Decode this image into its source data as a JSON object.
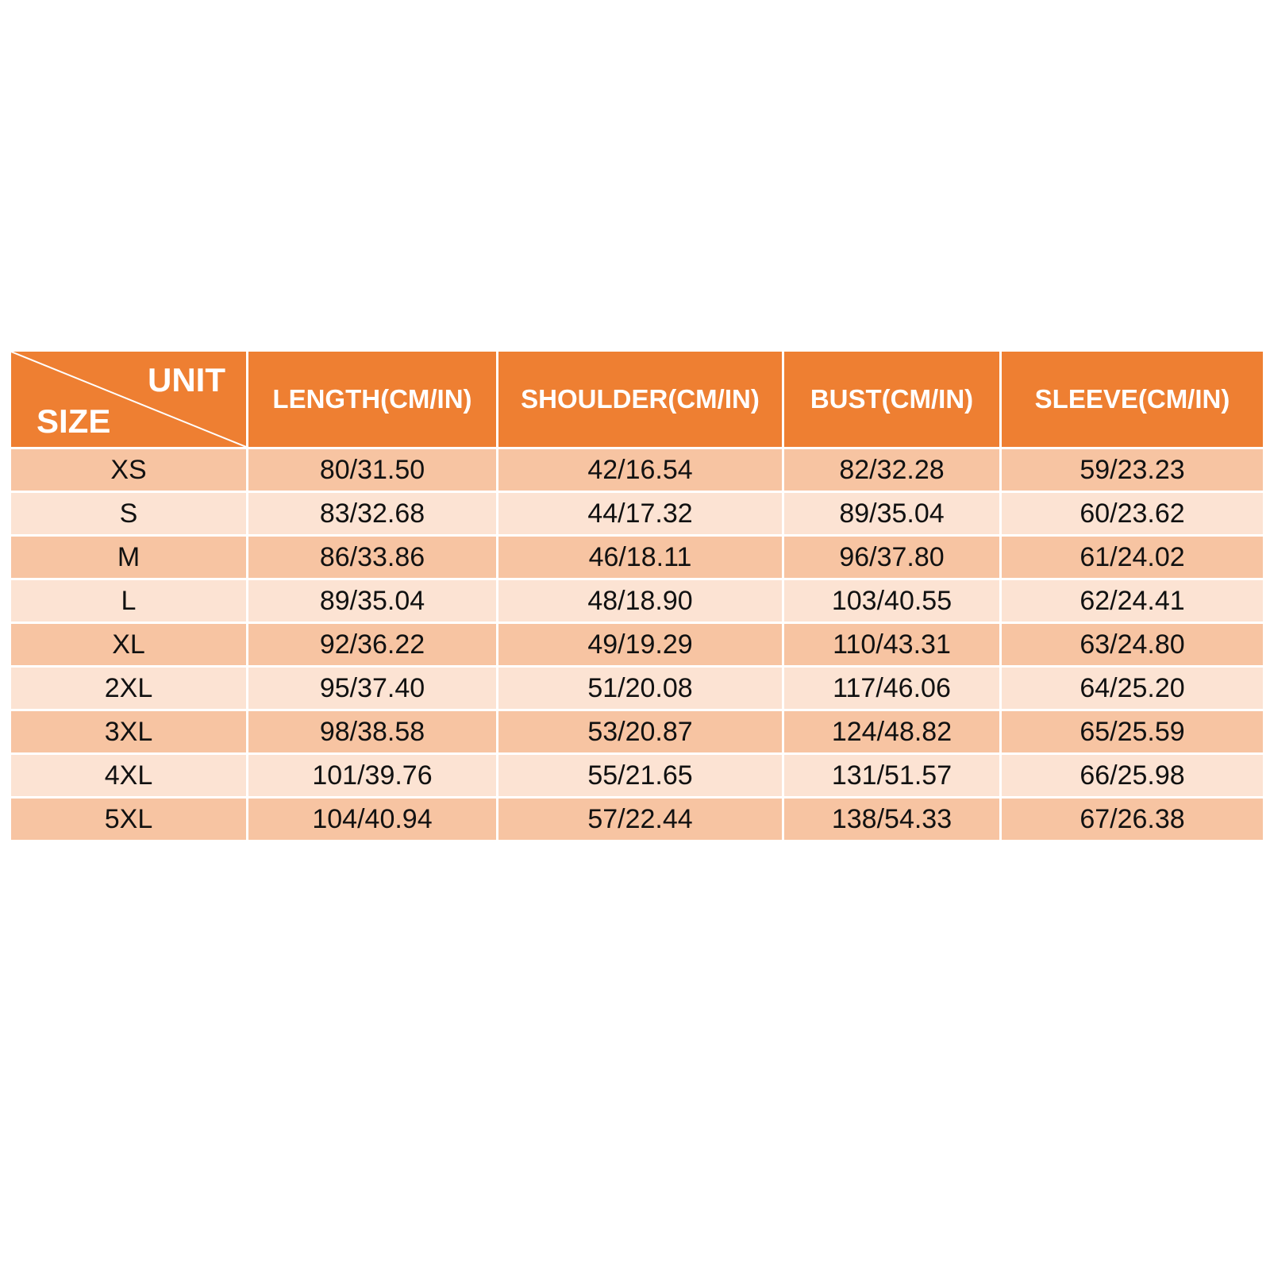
{
  "table": {
    "corner": {
      "unit": "UNIT",
      "size": "SIZE"
    },
    "columns": [
      "LENGTH(CM/IN)",
      "SHOULDER(CM/IN)",
      "BUST(CM/IN)",
      "SLEEVE(CM/IN)"
    ],
    "rows": [
      [
        "XS",
        "80/31.50",
        "42/16.54",
        "82/32.28",
        "59/23.23"
      ],
      [
        "S",
        "83/32.68",
        "44/17.32",
        "89/35.04",
        "60/23.62"
      ],
      [
        "M",
        "86/33.86",
        "46/18.11",
        "96/37.80",
        "61/24.02"
      ],
      [
        "L",
        "89/35.04",
        "48/18.90",
        "103/40.55",
        "62/24.41"
      ],
      [
        "XL",
        "92/36.22",
        "49/19.29",
        "110/43.31",
        "63/24.80"
      ],
      [
        "2XL",
        "95/37.40",
        "51/20.08",
        "117/46.06",
        "64/25.20"
      ],
      [
        "3XL",
        "98/38.58",
        "53/20.87",
        "124/48.82",
        "65/25.59"
      ],
      [
        "4XL",
        "101/39.76",
        "55/21.65",
        "131/51.57",
        "66/25.98"
      ],
      [
        "5XL",
        "104/40.94",
        "57/22.44",
        "138/54.33",
        "67/26.38"
      ]
    ]
  }
}
